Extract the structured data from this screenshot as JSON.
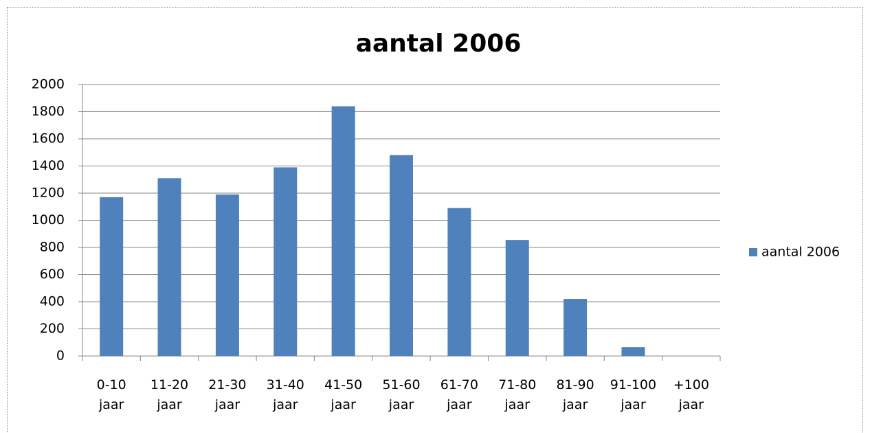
{
  "chart_data": {
    "type": "bar",
    "title": "aantal 2006",
    "categories": [
      "0-10 jaar",
      "11-20 jaar",
      "21-30 jaar",
      "31-40 jaar",
      "41-50 jaar",
      "51-60 jaar",
      "61-70 jaar",
      "71-80 jaar",
      "81-90 jaar",
      "91-100 jaar",
      "+100 jaar"
    ],
    "series": [
      {
        "name": "aantal 2006",
        "color": "#4f81bd",
        "values": [
          1170,
          1310,
          1190,
          1390,
          1840,
          1480,
          1090,
          855,
          420,
          65,
          0
        ]
      }
    ],
    "ylim": [
      0,
      2000
    ],
    "yticks": [
      0,
      200,
      400,
      600,
      800,
      1000,
      1200,
      1400,
      1600,
      1800,
      2000
    ],
    "grid": true,
    "legend": "right"
  }
}
